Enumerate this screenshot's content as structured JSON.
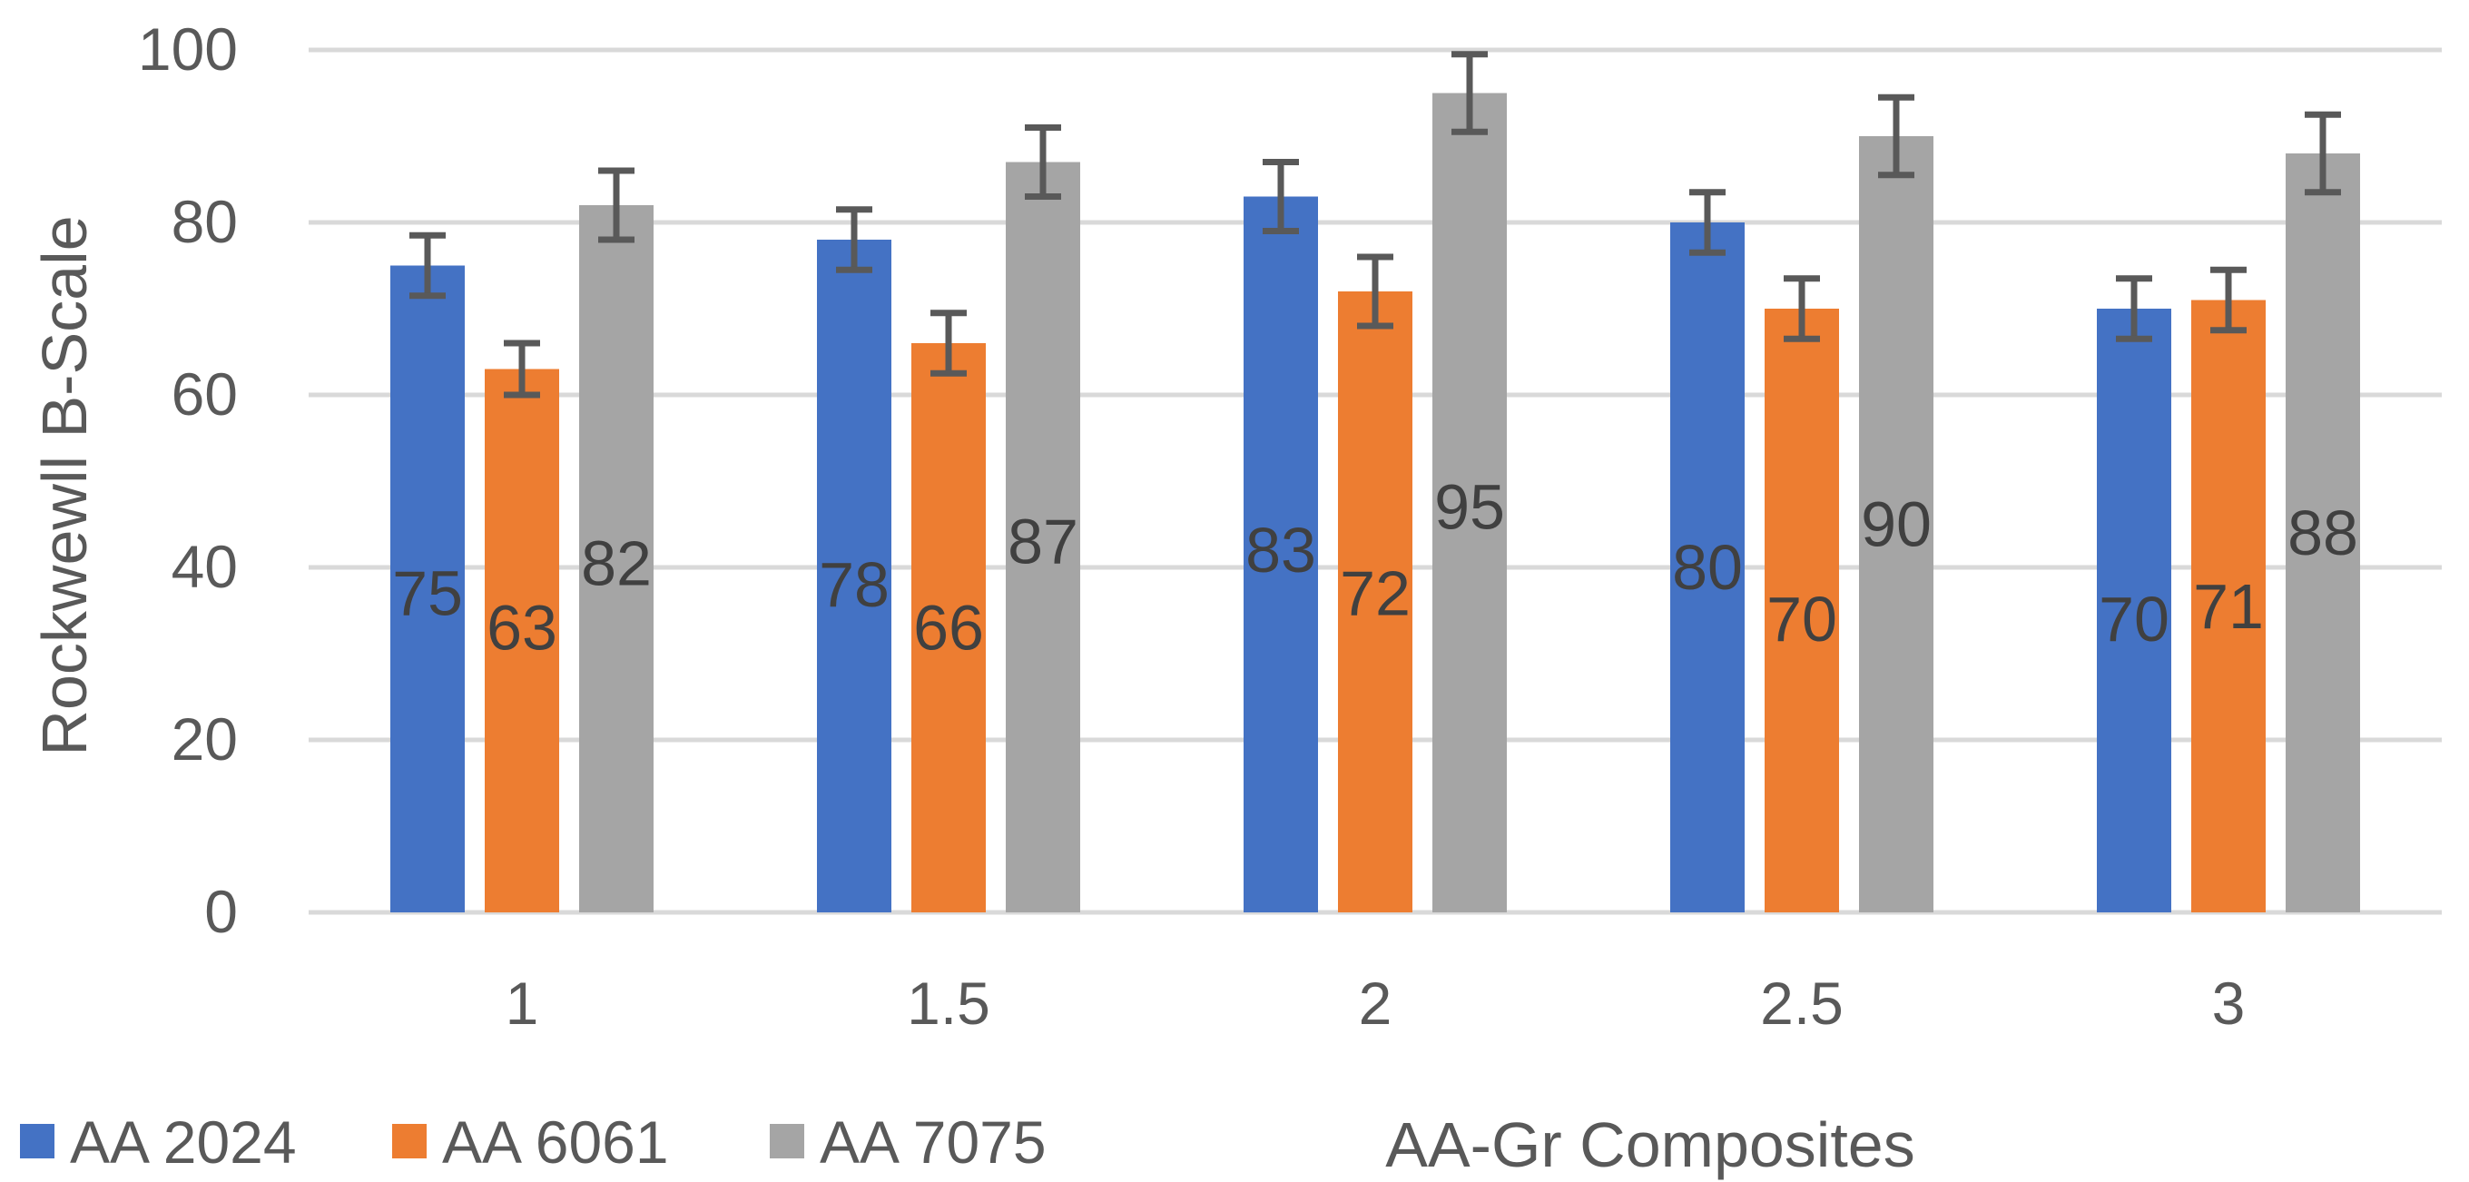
{
  "chart_data": {
    "type": "bar",
    "title": "",
    "xlabel": "AA-Gr Composites",
    "ylabel": "Rockwewll B-Scale",
    "categories": [
      "1",
      "1.5",
      "2",
      "2.5",
      "3"
    ],
    "ylim": [
      0,
      100
    ],
    "yticks": [
      0,
      20,
      40,
      60,
      80,
      100
    ],
    "grid": true,
    "legend_position": "bottom-left",
    "series": [
      {
        "name": "AA 2024",
        "color": "#4472c4",
        "values": [
          75,
          78,
          83,
          80,
          70
        ],
        "errors": [
          3.5,
          3.5,
          4,
          3.5,
          3.5
        ],
        "labels": [
          "75",
          "78",
          "83",
          "80",
          "70"
        ]
      },
      {
        "name": "AA 6061",
        "color": "#ed7d31",
        "values": [
          63,
          66,
          72,
          70,
          71
        ],
        "errors": [
          3,
          3.5,
          4,
          3.5,
          3.5
        ],
        "labels": [
          "63",
          "66",
          "72",
          "70",
          "71"
        ]
      },
      {
        "name": "AA 7075",
        "color": "#a5a5a5",
        "values": [
          82,
          87,
          95,
          90,
          88
        ],
        "errors": [
          4,
          4,
          4.5,
          4.5,
          4.5
        ],
        "labels": [
          "82",
          "87",
          "95",
          "90",
          "88"
        ]
      }
    ],
    "data_label_values": [
      [
        37,
        33,
        40.5
      ],
      [
        38,
        33,
        43
      ],
      [
        42,
        37,
        47
      ],
      [
        40,
        34,
        45
      ],
      [
        34,
        35.5,
        44
      ]
    ]
  }
}
